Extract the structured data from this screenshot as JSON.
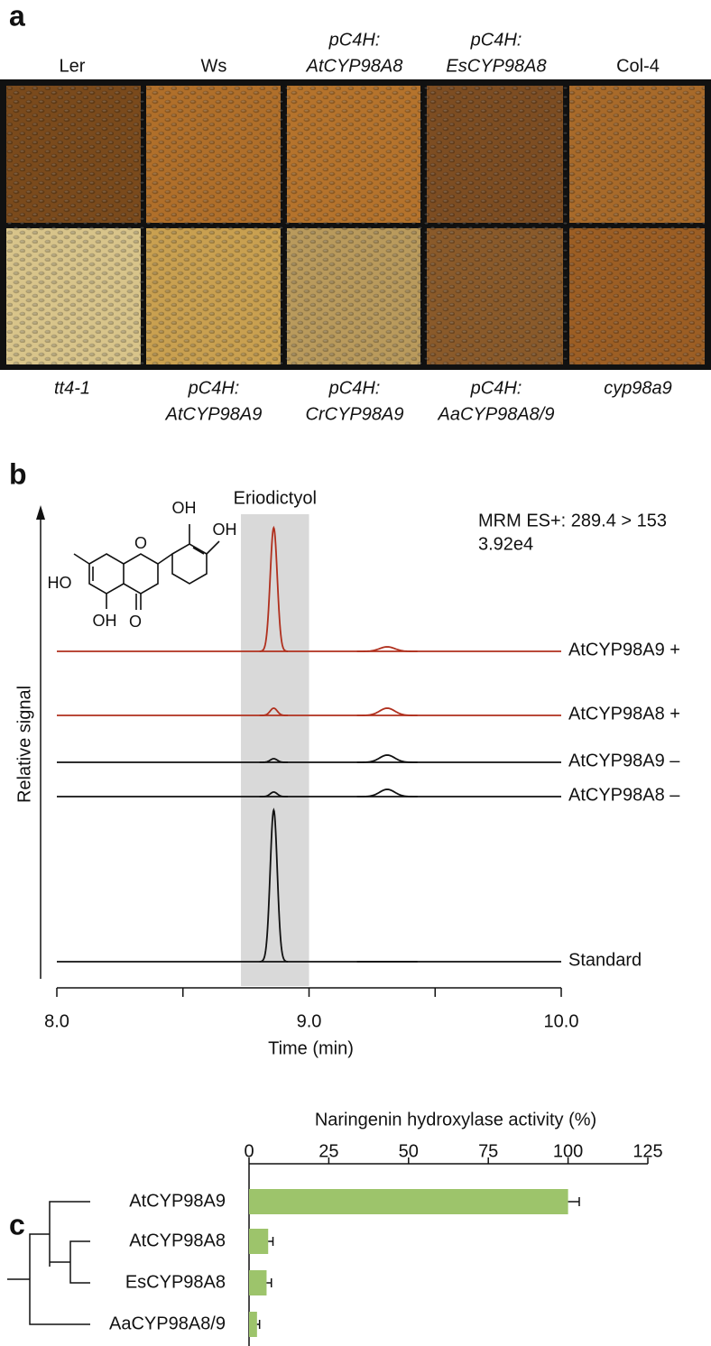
{
  "letters": [
    "a",
    "b",
    "c"
  ],
  "panel_a": {
    "top_labels": [
      {
        "lines": [
          "Ler"
        ],
        "italic": false
      },
      {
        "lines": [
          "Ws"
        ],
        "italic": false
      },
      {
        "lines": [
          "pC4H:",
          "AtCYP98A8"
        ],
        "italic": true
      },
      {
        "lines": [
          "pC4H:",
          "EsCYP98A8"
        ],
        "italic": true
      },
      {
        "lines": [
          "Col-4"
        ],
        "italic": false
      }
    ],
    "bottom_labels": [
      {
        "lines": [
          "tt4-1"
        ],
        "italic": true
      },
      {
        "lines": [
          "pC4H:",
          "AtCYP98A9"
        ],
        "italic": true
      },
      {
        "lines": [
          "pC4H:",
          "CrCYP98A9"
        ],
        "italic": true
      },
      {
        "lines": [
          "pC4H:",
          "AaCYP98A8/9"
        ],
        "italic": true
      },
      {
        "lines": [
          "cyp98a9"
        ],
        "italic": true
      }
    ]
  },
  "chart_data": [
    {
      "type": "chromatogram",
      "x_label": "Time (min)",
      "y_label": "Relative signal",
      "annotations": [
        "MRM ES+: 289.4 > 153",
        "3.92e4"
      ],
      "highlight": {
        "label": "Eriodictyol",
        "range": [
          8.73,
          9.0
        ]
      },
      "xlim": [
        8,
        10
      ],
      "xticks": [
        {
          "value": 8,
          "label": "8.0"
        },
        {
          "value": 9,
          "label": "9.0"
        },
        {
          "value": 10,
          "label": "10.0"
        }
      ],
      "minor_xticks": [
        8.5,
        9.5
      ],
      "x": [
        8.86,
        9.31
      ],
      "series": [
        {
          "name": "AtCYP98A9 +",
          "color": "#b0301e",
          "values": [
            137,
            5
          ]
        },
        {
          "name": "AtCYP98A8 +",
          "color": "#b0301e",
          "values": [
            8,
            8
          ]
        },
        {
          "name": "AtCYP98A9 –",
          "color": "#111111",
          "values": [
            4,
            8
          ]
        },
        {
          "name": "AtCYP98A8 –",
          "color": "#111111",
          "values": [
            5,
            8
          ]
        },
        {
          "name": "Standard",
          "color": "#111111",
          "values": [
            168,
            0
          ]
        }
      ],
      "structure_labels": [
        "HO",
        "OH",
        "O",
        "O",
        "OH",
        "OH"
      ]
    },
    {
      "type": "bar",
      "orientation": "horizontal",
      "x_label": "Naringenin hydroxylase activity (%)",
      "categories": [
        "AtCYP98A9",
        "AtCYP98A8",
        "EsCYP98A8",
        "AaCYP98A8/9"
      ],
      "values": [
        100,
        6,
        5.5,
        2.5
      ],
      "errors": [
        3.5,
        1.5,
        1.5,
        0.8
      ],
      "color": "#9dc46b",
      "xlim": [
        0,
        125
      ],
      "xticks": [
        0,
        25,
        50,
        75,
        100,
        125
      ]
    }
  ]
}
